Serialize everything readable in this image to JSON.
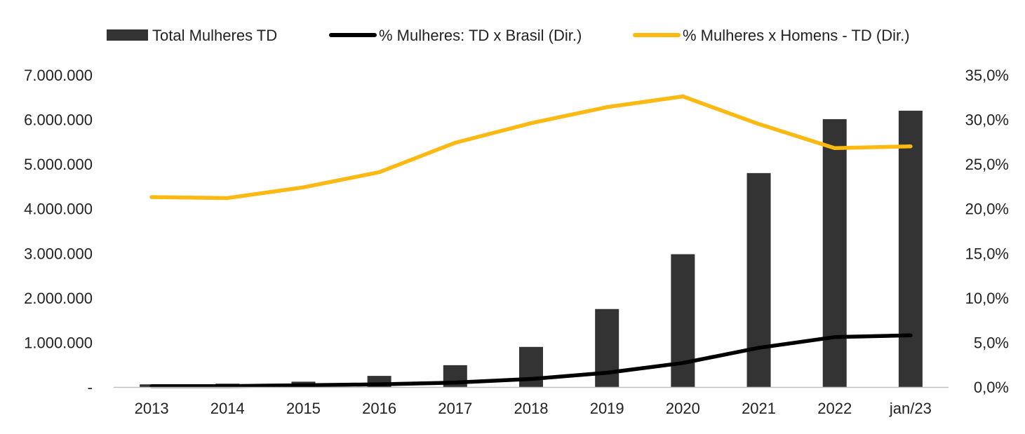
{
  "chart_data": {
    "type": "bar+line",
    "categories": [
      "2013",
      "2014",
      "2015",
      "2016",
      "2017",
      "2018",
      "2019",
      "2020",
      "2021",
      "2022",
      "jan/23"
    ],
    "series": [
      {
        "name": "Total Mulheres TD",
        "kind": "bar",
        "axis": "left",
        "color": "#333333",
        "values": [
          60000,
          75000,
          120000,
          250000,
          490000,
          900000,
          1750000,
          2980000,
          4800000,
          6010000,
          6200000
        ]
      },
      {
        "name": "% Mulheres: TD x Brasil (Dir.)",
        "kind": "line",
        "axis": "right",
        "color": "#000000",
        "values": [
          0.1,
          0.1,
          0.2,
          0.3,
          0.5,
          0.9,
          1.6,
          2.7,
          4.4,
          5.6,
          5.8
        ]
      },
      {
        "name": "% Mulheres x Homens - TD (Dir.)",
        "kind": "line",
        "axis": "right",
        "color": "#FBB912",
        "values": [
          21.3,
          21.2,
          22.4,
          24.1,
          27.4,
          29.6,
          31.4,
          32.6,
          29.5,
          26.8,
          27.0
        ]
      }
    ],
    "y_left": {
      "range": [
        0,
        7000000
      ],
      "ticks": [
        0,
        1000000,
        2000000,
        3000000,
        4000000,
        5000000,
        6000000,
        7000000
      ],
      "tick_labels": [
        "-",
        "1.000.000",
        "2.000.000",
        "3.000.000",
        "4.000.000",
        "5.000.000",
        "6.000.000",
        "7.000.000"
      ]
    },
    "y_right": {
      "range": [
        0,
        35
      ],
      "ticks": [
        0,
        5,
        10,
        15,
        20,
        25,
        30,
        35
      ],
      "tick_labels": [
        "0,0%",
        "5,0%",
        "10,0%",
        "15,0%",
        "20,0%",
        "25,0%",
        "30,0%",
        "35,0%"
      ]
    },
    "grid": false,
    "legend_position": "top"
  }
}
